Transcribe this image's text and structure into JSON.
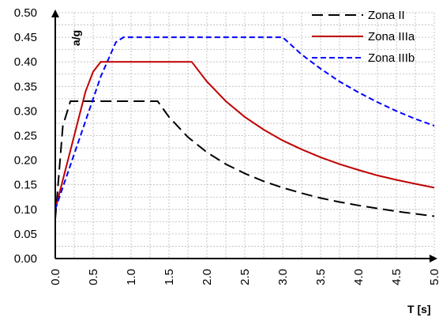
{
  "chart_data": {
    "type": "line",
    "title": "",
    "xlabel": "T [s]",
    "ylabel": "a/g",
    "xlim": [
      0,
      5
    ],
    "ylim": [
      0,
      0.5
    ],
    "x_ticks": [
      "0.0",
      "0.5",
      "1.0",
      "1.5",
      "2.0",
      "2.5",
      "3.0",
      "3.5",
      "4.0",
      "4.5",
      "5.0"
    ],
    "y_ticks": [
      "0.00",
      "0.05",
      "0.10",
      "0.15",
      "0.20",
      "0.25",
      "0.30",
      "0.35",
      "0.40",
      "0.45",
      "0.50"
    ],
    "grid": true,
    "legend_position": "top-right",
    "series": [
      {
        "name": "Zona II",
        "color": "#000000",
        "dash": "long-dash",
        "x": [
          0,
          0.1,
          0.2,
          0.3,
          0.4,
          0.5,
          0.6,
          0.7,
          0.8,
          0.9,
          1.0,
          1.1,
          1.2,
          1.3,
          1.35,
          1.5,
          1.75,
          2.0,
          2.25,
          2.5,
          2.75,
          3.0,
          3.25,
          3.5,
          3.75,
          4.0,
          4.25,
          4.5,
          4.75,
          5.0
        ],
        "y": [
          0.08,
          0.27,
          0.32,
          0.32,
          0.32,
          0.32,
          0.32,
          0.32,
          0.32,
          0.32,
          0.32,
          0.32,
          0.32,
          0.32,
          0.32,
          0.288,
          0.247,
          0.216,
          0.192,
          0.173,
          0.157,
          0.144,
          0.133,
          0.123,
          0.115,
          0.108,
          0.102,
          0.096,
          0.091,
          0.086
        ]
      },
      {
        "name": "Zona IIIa",
        "color": "#c00000",
        "dash": "solid",
        "x": [
          0,
          0.1,
          0.2,
          0.3,
          0.4,
          0.5,
          0.6,
          0.8,
          1.0,
          1.2,
          1.4,
          1.6,
          1.8,
          2.0,
          2.25,
          2.5,
          2.75,
          3.0,
          3.25,
          3.5,
          3.75,
          4.0,
          4.25,
          4.5,
          4.75,
          5.0
        ],
        "y": [
          0.1,
          0.16,
          0.22,
          0.28,
          0.34,
          0.38,
          0.4,
          0.4,
          0.4,
          0.4,
          0.4,
          0.4,
          0.4,
          0.36,
          0.32,
          0.288,
          0.262,
          0.24,
          0.222,
          0.206,
          0.192,
          0.18,
          0.169,
          0.16,
          0.152,
          0.144
        ]
      },
      {
        "name": "Zona IIIb",
        "color": "#0000ff",
        "dash": "short-dash",
        "x": [
          0,
          0.2,
          0.4,
          0.6,
          0.8,
          0.9,
          1.0,
          1.5,
          2.0,
          2.5,
          3.0,
          3.25,
          3.5,
          3.75,
          4.0,
          4.25,
          4.5,
          4.75,
          5.0
        ],
        "y": [
          0.1,
          0.19,
          0.28,
          0.37,
          0.44,
          0.45,
          0.45,
          0.45,
          0.45,
          0.45,
          0.45,
          0.415,
          0.386,
          0.36,
          0.338,
          0.318,
          0.3,
          0.284,
          0.27
        ]
      }
    ]
  }
}
